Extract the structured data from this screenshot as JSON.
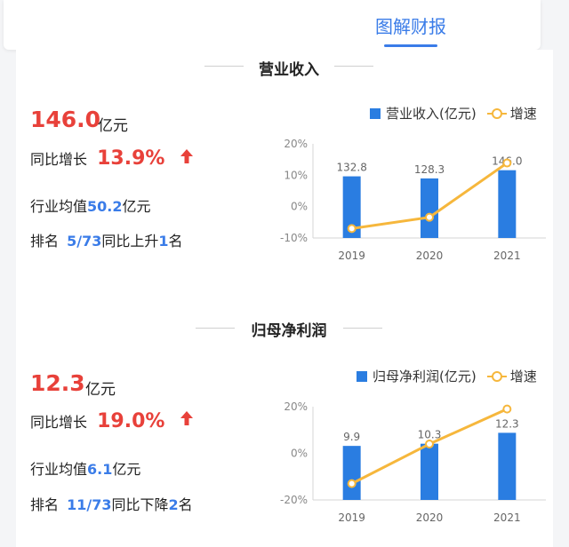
{
  "header": {
    "tab_label": "图解财报"
  },
  "sections": [
    {
      "title": "营业收入",
      "value": "146.0",
      "unit": "亿元",
      "growth_label": "同比增长",
      "growth_value": "13.9%",
      "avg_label": "行业均值",
      "avg_value": "50.2",
      "avg_unit": "亿元",
      "rank_label": "排名",
      "rank_value": "5/73",
      "rank_change_label": "同比上升",
      "rank_change_value": "1",
      "rank_change_unit": "名",
      "legend_bar": "营业收入(亿元)",
      "legend_line": "增速",
      "chart_data": {
        "type": "bar",
        "categories": [
          "2019",
          "2020",
          "2021"
        ],
        "series": [
          {
            "name": "营业收入(亿元)",
            "values": [
              132.8,
              128.3,
              146.0
            ]
          },
          {
            "name": "增速",
            "values": [
              -7.0,
              -3.4,
              13.9
            ]
          }
        ],
        "data_labels": [
          "132.8",
          "128.3",
          "146.0"
        ],
        "yticks": [
          "20%",
          "10%",
          "0%",
          "-10%"
        ],
        "ylim": [
          -10,
          20
        ],
        "legend": "top-right"
      }
    },
    {
      "title": "归母净利润",
      "value": "12.3",
      "unit": "亿元",
      "growth_label": "同比增长",
      "growth_value": "19.0%",
      "avg_label": "行业均值",
      "avg_value": "6.1",
      "avg_unit": "亿元",
      "rank_label": "排名",
      "rank_value": "11/73",
      "rank_change_label": "同比下降",
      "rank_change_value": "2",
      "rank_change_unit": "名",
      "legend_bar": "归母净利润(亿元)",
      "legend_line": "增速",
      "chart_data": {
        "type": "bar",
        "categories": [
          "2019",
          "2020",
          "2021"
        ],
        "series": [
          {
            "name": "归母净利润(亿元)",
            "values": [
              9.9,
              10.3,
              12.3
            ]
          },
          {
            "name": "增速",
            "values": [
              -13.0,
              4.0,
              19.0
            ]
          }
        ],
        "data_labels": [
          "9.9",
          "10.3",
          "12.3"
        ],
        "yticks": [
          "20%",
          "0%",
          "-20%"
        ],
        "ylim": [
          -20,
          20
        ],
        "legend": "top-right"
      }
    }
  ],
  "colors": {
    "bar": "#2a7de1",
    "line": "#f6b73c",
    "accent_red": "#e8413a",
    "accent_blue": "#3a7ce8"
  },
  "icons": [
    "up-arrow-icon"
  ]
}
